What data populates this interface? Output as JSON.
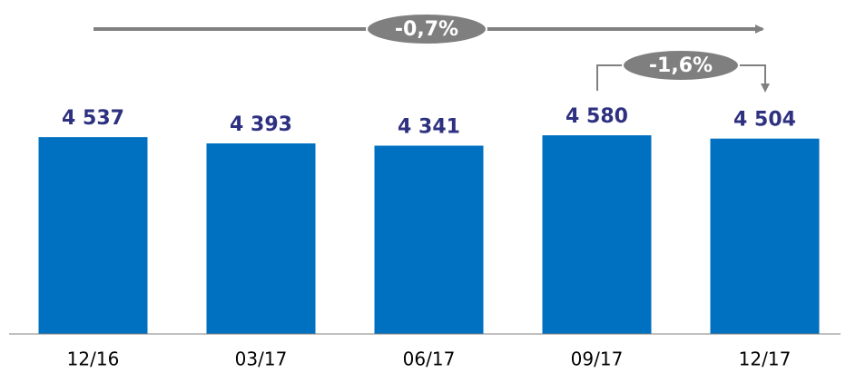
{
  "chart_data": {
    "type": "bar",
    "categories": [
      "12/16",
      "03/17",
      "06/17",
      "09/17",
      "12/17"
    ],
    "values": [
      4537,
      4393,
      4341,
      4580,
      4504
    ],
    "value_labels": [
      "4 537",
      "4 393",
      "4 341",
      "4 580",
      "4 504"
    ],
    "color": "#0070c0",
    "ylim": [
      0,
      5000
    ],
    "annotations": [
      "-0,7%",
      "-1,6%"
    ]
  }
}
